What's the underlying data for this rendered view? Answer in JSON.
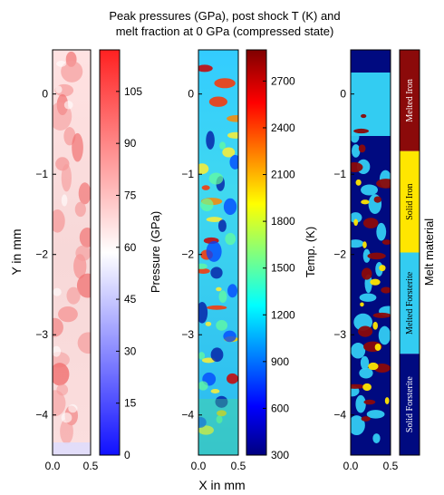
{
  "title_line1": "Peak pressures (GPa), post shock T (K) and",
  "title_line2": "melt fraction at 0 GPa (compressed state)",
  "ylabel": "Y in mm",
  "xlabel": "X in mm",
  "colors": {
    "pressure_low": "#1010ff",
    "pressure_mid": "#ffffff",
    "pressure_high": "#ff2020",
    "melted_iron": "#8b0a0a",
    "solid_iron": "#ffe600",
    "melted_forsterite": "#33ccf2",
    "solid_forsterite": "#000a80"
  },
  "chart_data": [
    {
      "type": "heatmap",
      "panel": "pressure",
      "colorbar_label": "Pressure (GPa)",
      "colorbar_ticks": [
        "0",
        "15",
        "30",
        "45",
        "60",
        "75",
        "90",
        "105"
      ],
      "colorbar_values": [
        0,
        15,
        30,
        45,
        60,
        75,
        90,
        105
      ],
      "colorbar_range": [
        0,
        117
      ],
      "colormap": "blue-white-red",
      "xlim": [
        0.0,
        0.5
      ],
      "ylim": [
        -4.5,
        0.55
      ],
      "x_ticks": [
        "0.0",
        "0.5"
      ],
      "x_tick_values": [
        0.0,
        0.5
      ],
      "y_ticks": [
        "0",
        "−1",
        "−2",
        "−3",
        "−4"
      ],
      "y_tick_values": [
        0,
        -1,
        -2,
        -3,
        -4
      ]
    },
    {
      "type": "heatmap",
      "panel": "temperature",
      "colorbar_label": "Temp. (K)",
      "colorbar_ticks": [
        "300",
        "600",
        "900",
        "1200",
        "1500",
        "1800",
        "2100",
        "2400",
        "2700"
      ],
      "colorbar_values": [
        300,
        600,
        900,
        1200,
        1500,
        1800,
        2100,
        2400,
        2700
      ],
      "colorbar_range": [
        300,
        2900
      ],
      "colormap": "jet",
      "xlim": [
        0.0,
        0.5
      ],
      "ylim": [
        -4.5,
        0.55
      ],
      "x_ticks": [
        "0.0",
        "0.5"
      ],
      "x_tick_values": [
        0.0,
        0.5
      ],
      "y_ticks": [
        "0",
        "−1",
        "−2",
        "−3",
        "−4"
      ],
      "y_tick_values": [
        0,
        -1,
        -2,
        -3,
        -4
      ]
    },
    {
      "type": "heatmap",
      "panel": "melt",
      "colorbar_label": "Melt material",
      "categories": [
        "Melted Iron",
        "Solid Iron",
        "Melted Forsterite",
        "Solid Forsterite"
      ],
      "xlim": [
        0.0,
        0.5
      ],
      "ylim": [
        -4.5,
        0.55
      ],
      "x_ticks": [
        "0.0",
        "0.5"
      ],
      "x_tick_values": [
        0.0,
        0.5
      ],
      "y_ticks": [
        "0",
        "−1",
        "−2",
        "−3",
        "−4"
      ],
      "y_tick_values": [
        0,
        -1,
        -2,
        -3,
        -4
      ]
    }
  ]
}
